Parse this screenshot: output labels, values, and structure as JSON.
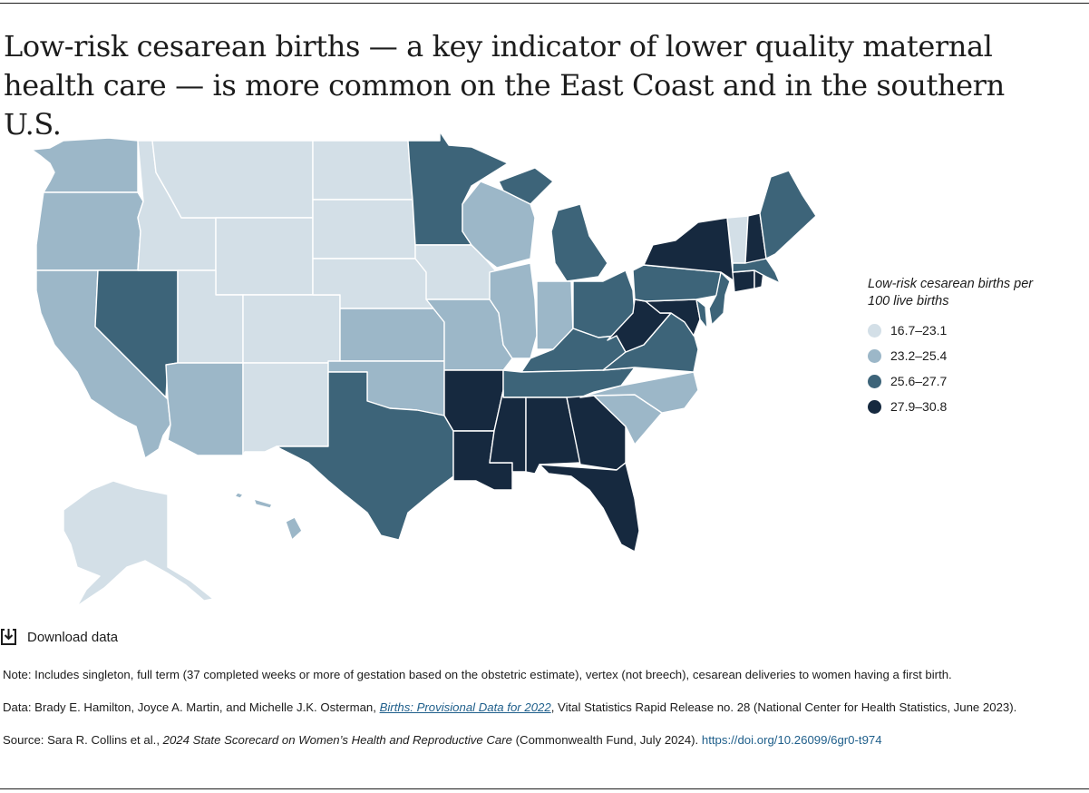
{
  "title": "Low-risk cesarean births — a key indicator of lower quality maternal health care — is more common on the East Coast and in the southern U.S.",
  "legend": {
    "title": "Low-risk cesarean births per 100 live births",
    "bins": [
      {
        "label": "16.7–23.1",
        "color": "#d3dfe7"
      },
      {
        "label": "23.2–25.4",
        "color": "#9cb7c8"
      },
      {
        "label": "25.6–27.7",
        "color": "#3d6479"
      },
      {
        "label": "27.9–30.8",
        "color": "#16293f"
      }
    ]
  },
  "map_data": {
    "type": "choropleth",
    "region": "United States",
    "states": {
      "WA": 1,
      "OR": 1,
      "CA": 1,
      "NV": 2,
      "ID": 0,
      "MT": 0,
      "WY": 0,
      "UT": 0,
      "AZ": 1,
      "CO": 0,
      "NM": 0,
      "ND": 0,
      "SD": 0,
      "NE": 0,
      "KS": 1,
      "OK": 1,
      "TX": 2,
      "MN": 2,
      "IA": 0,
      "MO": 1,
      "AR": 3,
      "LA": 3,
      "WI": 1,
      "IL": 1,
      "MI": 2,
      "IN": 1,
      "OH": 2,
      "KY": 2,
      "TN": 2,
      "MS": 3,
      "AL": 3,
      "GA": 3,
      "FL": 3,
      "SC": 1,
      "NC": 1,
      "VA": 2,
      "WV": 3,
      "MD": 3,
      "DE": 2,
      "PA": 2,
      "NJ": 2,
      "NY": 3,
      "CT": 3,
      "RI": 3,
      "MA": 2,
      "VT": 0,
      "NH": 3,
      "ME": 2,
      "AK": 0,
      "HI": 1
    }
  },
  "download": {
    "label": "Download data",
    "icon": "download-icon"
  },
  "notes": {
    "note": "Note: Includes singleton, full term (37 completed weeks or more of gestation based on the obstetric estimate), vertex (not breech), cesarean deliveries to women having a first birth.",
    "data_prefix": "Data: Brady E. Hamilton, Joyce A. Martin, and Michelle J.K. Osterman, ",
    "data_link": "Births: Provisional Data for 2022",
    "data_suffix": ", Vital Statistics Rapid Release no. 28 (National Center for Health Statistics, June 2023).",
    "source_prefix": "Source: Sara R. Collins et al., ",
    "source_italic": "2024 State Scorecard on Women’s Health and Reproductive Care",
    "source_middle": " (Commonwealth Fund, July 2024). ",
    "source_link": "https://doi.org/10.26099/6gr0-t974"
  }
}
